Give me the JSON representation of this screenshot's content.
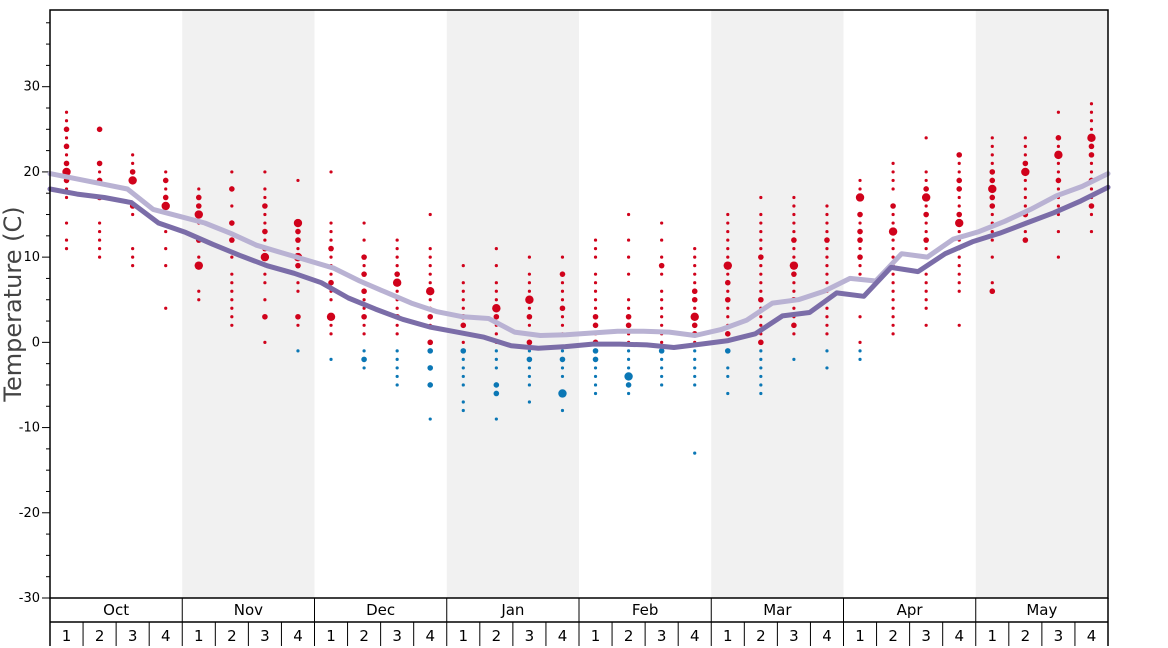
{
  "chart_data": {
    "type": "scatter",
    "title": "",
    "ylabel": "Temperature (C)",
    "xlabel": "",
    "ylim": [
      -30,
      39
    ],
    "yticks": [
      30,
      20,
      10,
      0,
      -10,
      -20,
      -30
    ],
    "ytick_labels": [
      "30",
      "20",
      "10",
      "0",
      "-10",
      "-20",
      "-30"
    ],
    "months": [
      "Oct",
      "Nov",
      "Dec",
      "Jan",
      "Feb",
      "Mar",
      "Apr",
      "May"
    ],
    "weeks_per_month": 4,
    "week_labels": [
      "1",
      "2",
      "3",
      "4"
    ],
    "shaded_months": [
      "Nov",
      "Jan",
      "Mar",
      "May"
    ],
    "colors": {
      "warm_dots": "#d0021b",
      "cold_dots": "#0b77b5",
      "upper_line": "#b9b2d3",
      "lower_line": "#7b6da8",
      "shade": "#f1f1f1"
    },
    "series": [
      {
        "name": "",
        "color": "#b9b2d3",
        "values": [
          19.8,
          19.2,
          18.6,
          18.0,
          15.6,
          14.8,
          14.0,
          12.8,
          11.4,
          10.5,
          9.6,
          8.7,
          7.2,
          5.9,
          4.6,
          3.6,
          3.0,
          2.8,
          1.2,
          0.8,
          0.9,
          1.1,
          1.3,
          1.3,
          1.2,
          0.8,
          1.5,
          2.6,
          4.6,
          5.0,
          6.0,
          7.5,
          7.2,
          10.4,
          10.0,
          12.1,
          13.0,
          14.2,
          15.6,
          17.2,
          18.3,
          19.8
        ]
      },
      {
        "name": "",
        "color": "#7b6da8",
        "values": [
          18.0,
          17.4,
          17.0,
          16.4,
          14.0,
          12.9,
          11.5,
          10.2,
          9.0,
          8.1,
          7.0,
          5.2,
          3.9,
          2.7,
          1.8,
          1.2,
          0.6,
          -0.4,
          -0.7,
          -0.5,
          -0.2,
          -0.2,
          -0.3,
          -0.6,
          -0.2,
          0.2,
          1.0,
          3.1,
          3.5,
          5.8,
          5.4,
          8.8,
          8.3,
          10.4,
          11.8,
          12.8,
          14.0,
          15.2,
          16.6,
          18.2
        ]
      }
    ],
    "scatter_points": [
      {
        "week": 1,
        "temps": [
          27,
          26,
          25,
          24,
          23,
          22,
          21,
          20,
          19,
          18,
          17,
          14,
          12,
          11
        ],
        "sizes": [
          1,
          1,
          2,
          1,
          2,
          1,
          2,
          3,
          2,
          1,
          1,
          1,
          1,
          1
        ]
      },
      {
        "week": 2,
        "temps": [
          25,
          21,
          20,
          19,
          17,
          14,
          13,
          12,
          11,
          10
        ],
        "sizes": [
          2,
          2,
          1,
          2,
          2,
          1,
          1,
          1,
          1,
          1
        ]
      },
      {
        "week": 3,
        "temps": [
          22,
          21,
          20,
          19,
          16,
          15,
          11,
          10,
          9
        ],
        "sizes": [
          1,
          1,
          2,
          3,
          2,
          1,
          1,
          1,
          1
        ]
      },
      {
        "week": 4,
        "temps": [
          20,
          19,
          18,
          17,
          16,
          13,
          11,
          9,
          4
        ],
        "sizes": [
          1,
          2,
          1,
          2,
          3,
          1,
          1,
          1,
          1
        ]
      },
      {
        "week": 5,
        "temps": [
          18,
          17,
          16,
          15,
          14,
          12,
          10,
          9,
          6,
          5
        ],
        "sizes": [
          1,
          2,
          2,
          3,
          1,
          2,
          1,
          3,
          1,
          1
        ]
      },
      {
        "week": 6,
        "temps": [
          20,
          18,
          16,
          14,
          12,
          10,
          8,
          7,
          6,
          5,
          4,
          3,
          2
        ],
        "sizes": [
          1,
          2,
          1,
          2,
          2,
          1,
          1,
          1,
          1,
          1,
          1,
          1,
          1
        ]
      },
      {
        "week": 7,
        "temps": [
          20,
          18,
          17,
          16,
          15,
          14,
          13,
          12,
          11,
          10,
          9,
          8,
          7,
          5,
          3,
          0
        ],
        "sizes": [
          1,
          1,
          1,
          2,
          1,
          1,
          2,
          1,
          2,
          3,
          1,
          1,
          1,
          1,
          2,
          1
        ]
      },
      {
        "week": 8,
        "temps": [
          19,
          14,
          13,
          12,
          11,
          10,
          9,
          8,
          7,
          6,
          3,
          2,
          -1
        ],
        "sizes": [
          1,
          3,
          2,
          2,
          1,
          3,
          2,
          1,
          1,
          1,
          2,
          1,
          1
        ]
      },
      {
        "week": 9,
        "temps": [
          20,
          14,
          13,
          12,
          11,
          10,
          9,
          8,
          7,
          6,
          5,
          3,
          2,
          1,
          -2
        ],
        "sizes": [
          1,
          1,
          1,
          1,
          2,
          1,
          1,
          1,
          2,
          1,
          1,
          3,
          1,
          1,
          1
        ]
      },
      {
        "week": 10,
        "temps": [
          14,
          12,
          10,
          9,
          8,
          7,
          6,
          5,
          4,
          3,
          2,
          1,
          -1,
          -2,
          -3
        ],
        "sizes": [
          1,
          1,
          2,
          1,
          2,
          1,
          2,
          1,
          1,
          2,
          1,
          1,
          1,
          2,
          1
        ]
      },
      {
        "week": 11,
        "temps": [
          12,
          11,
          10,
          9,
          8,
          7,
          6,
          5,
          4,
          3,
          2,
          1,
          -1,
          -2,
          -3,
          -4,
          -5
        ],
        "sizes": [
          1,
          1,
          1,
          1,
          2,
          3,
          1,
          1,
          1,
          2,
          1,
          1,
          1,
          1,
          1,
          1,
          1
        ]
      },
      {
        "week": 12,
        "temps": [
          15,
          11,
          10,
          9,
          8,
          7,
          6,
          5,
          4,
          3,
          2,
          0,
          -1,
          -3,
          -5,
          -9
        ],
        "sizes": [
          1,
          1,
          1,
          1,
          1,
          1,
          3,
          1,
          1,
          2,
          1,
          2,
          2,
          2,
          2,
          1
        ]
      },
      {
        "week": 13,
        "temps": [
          9,
          7,
          6,
          5,
          4,
          3,
          2,
          1,
          0,
          -1,
          -2,
          -3,
          -4,
          -5,
          -7,
          -8
        ],
        "sizes": [
          1,
          1,
          1,
          1,
          1,
          2,
          2,
          1,
          1,
          2,
          1,
          1,
          1,
          1,
          1,
          1
        ]
      },
      {
        "week": 14,
        "temps": [
          11,
          9,
          7,
          6,
          5,
          4,
          3,
          2,
          1,
          0,
          -1,
          -2,
          -3,
          -5,
          -6,
          -9
        ],
        "sizes": [
          1,
          1,
          1,
          1,
          1,
          3,
          2,
          1,
          1,
          1,
          1,
          1,
          1,
          2,
          2,
          1
        ]
      },
      {
        "week": 15,
        "temps": [
          10,
          8,
          7,
          6,
          5,
          4,
          3,
          2,
          1,
          0,
          -1,
          -2,
          -3,
          -4,
          -5,
          -7
        ],
        "sizes": [
          1,
          1,
          1,
          1,
          3,
          1,
          2,
          1,
          1,
          2,
          1,
          2,
          1,
          1,
          1,
          1
        ]
      },
      {
        "week": 16,
        "temps": [
          10,
          8,
          7,
          6,
          5,
          4,
          3,
          2,
          1,
          -1,
          -2,
          -3,
          -4,
          -6,
          -8
        ],
        "sizes": [
          1,
          2,
          1,
          1,
          1,
          2,
          1,
          1,
          1,
          1,
          2,
          1,
          1,
          3,
          1
        ]
      },
      {
        "week": 17,
        "temps": [
          12,
          11,
          10,
          8,
          7,
          6,
          5,
          4,
          3,
          2,
          1,
          0,
          -1,
          -2,
          -3,
          -4,
          -5,
          -6
        ],
        "sizes": [
          1,
          1,
          1,
          1,
          1,
          1,
          1,
          1,
          2,
          2,
          1,
          2,
          2,
          2,
          1,
          1,
          1,
          1
        ]
      },
      {
        "week": 18,
        "temps": [
          15,
          12,
          10,
          8,
          5,
          4,
          3,
          2,
          1,
          0,
          -1,
          -2,
          -3,
          -4,
          -5,
          -6
        ],
        "sizes": [
          1,
          1,
          1,
          1,
          1,
          1,
          2,
          2,
          1,
          1,
          1,
          1,
          1,
          3,
          2,
          1
        ]
      },
      {
        "week": 19,
        "temps": [
          14,
          12,
          10,
          9,
          8,
          6,
          5,
          4,
          3,
          2,
          1,
          0,
          -1,
          -2,
          -3,
          -4,
          -5
        ],
        "sizes": [
          1,
          1,
          1,
          2,
          1,
          1,
          1,
          1,
          1,
          1,
          1,
          1,
          2,
          1,
          1,
          1,
          1
        ]
      },
      {
        "week": 20,
        "temps": [
          11,
          10,
          9,
          8,
          7,
          6,
          5,
          4,
          3,
          2,
          1,
          0,
          -1,
          -2,
          -3,
          -4,
          -5,
          -13
        ],
        "sizes": [
          1,
          1,
          1,
          1,
          1,
          2,
          2,
          1,
          3,
          2,
          2,
          1,
          1,
          1,
          1,
          1,
          1,
          1
        ]
      },
      {
        "week": 21,
        "temps": [
          15,
          14,
          13,
          12,
          11,
          10,
          9,
          8,
          7,
          6,
          5,
          4,
          3,
          2,
          1,
          -1,
          -3,
          -4,
          -6
        ],
        "sizes": [
          1,
          1,
          1,
          1,
          1,
          1,
          3,
          1,
          2,
          1,
          2,
          1,
          1,
          1,
          2,
          2,
          1,
          1,
          1
        ]
      },
      {
        "week": 22,
        "temps": [
          17,
          15,
          14,
          13,
          12,
          11,
          10,
          9,
          8,
          7,
          6,
          5,
          4,
          3,
          2,
          1,
          0,
          -1,
          -2,
          -3,
          -4,
          -5,
          -6
        ],
        "sizes": [
          1,
          1,
          1,
          1,
          1,
          1,
          2,
          1,
          1,
          1,
          1,
          2,
          1,
          1,
          1,
          1,
          2,
          1,
          1,
          1,
          1,
          1,
          1
        ]
      },
      {
        "week": 23,
        "temps": [
          17,
          16,
          15,
          14,
          13,
          12,
          11,
          10,
          9,
          8,
          7,
          6,
          5,
          4,
          3,
          2,
          1,
          -2
        ],
        "sizes": [
          1,
          1,
          1,
          1,
          1,
          2,
          1,
          1,
          3,
          2,
          1,
          1,
          2,
          1,
          1,
          2,
          1,
          1
        ]
      },
      {
        "week": 24,
        "temps": [
          16,
          15,
          14,
          13,
          12,
          11,
          10,
          9,
          8,
          7,
          6,
          5,
          4,
          3,
          2,
          1,
          -1,
          -3
        ],
        "sizes": [
          1,
          1,
          1,
          1,
          2,
          1,
          1,
          1,
          1,
          1,
          1,
          1,
          1,
          1,
          1,
          1,
          1,
          1
        ]
      },
      {
        "week": 25,
        "temps": [
          19,
          18,
          17,
          15,
          14,
          13,
          12,
          11,
          10,
          9,
          8,
          3,
          0,
          -1,
          -2
        ],
        "sizes": [
          1,
          1,
          3,
          2,
          1,
          2,
          2,
          1,
          2,
          1,
          1,
          1,
          1,
          1,
          1
        ]
      },
      {
        "week": 26,
        "temps": [
          21,
          20,
          19,
          18,
          16,
          15,
          14,
          13,
          12,
          11,
          10,
          9,
          8,
          7,
          6,
          5,
          4,
          3,
          2,
          1
        ],
        "sizes": [
          1,
          1,
          1,
          1,
          2,
          1,
          1,
          3,
          1,
          1,
          1,
          1,
          1,
          1,
          1,
          1,
          1,
          1,
          1,
          1
        ]
      },
      {
        "week": 27,
        "temps": [
          24,
          20,
          19,
          18,
          17,
          16,
          15,
          14,
          13,
          12,
          11,
          10,
          9,
          8,
          7,
          6,
          5,
          4,
          2
        ],
        "sizes": [
          1,
          1,
          1,
          2,
          3,
          1,
          2,
          1,
          1,
          2,
          1,
          1,
          1,
          1,
          1,
          1,
          1,
          1,
          1
        ]
      },
      {
        "week": 28,
        "temps": [
          22,
          21,
          20,
          19,
          18,
          17,
          16,
          15,
          14,
          13,
          12,
          11,
          10,
          9,
          8,
          7,
          6,
          2
        ],
        "sizes": [
          2,
          1,
          1,
          2,
          2,
          1,
          1,
          2,
          3,
          1,
          1,
          1,
          1,
          1,
          1,
          1,
          1,
          1
        ]
      },
      {
        "week": 29,
        "temps": [
          24,
          23,
          22,
          21,
          20,
          19,
          18,
          17,
          16,
          15,
          14,
          13,
          12,
          10,
          7,
          6
        ],
        "sizes": [
          1,
          1,
          1,
          1,
          2,
          2,
          3,
          2,
          2,
          1,
          1,
          1,
          1,
          1,
          1,
          2
        ]
      },
      {
        "week": 30,
        "temps": [
          24,
          23,
          22,
          21,
          20,
          19,
          18,
          17,
          16,
          15,
          14,
          13,
          12
        ],
        "sizes": [
          1,
          1,
          1,
          2,
          3,
          1,
          1,
          1,
          1,
          2,
          1,
          1,
          2
        ]
      },
      {
        "week": 31,
        "temps": [
          27,
          24,
          23,
          22,
          21,
          20,
          19,
          18,
          17,
          16,
          15,
          13,
          10
        ],
        "sizes": [
          1,
          2,
          1,
          3,
          1,
          1,
          2,
          1,
          1,
          1,
          1,
          1,
          1
        ]
      },
      {
        "week": 32,
        "temps": [
          28,
          27,
          26,
          25,
          24,
          23,
          22,
          21,
          20,
          19,
          18,
          17,
          16,
          15,
          13
        ],
        "sizes": [
          1,
          1,
          1,
          1,
          3,
          2,
          2,
          1,
          1,
          2,
          1,
          1,
          2,
          1,
          1
        ]
      }
    ]
  }
}
